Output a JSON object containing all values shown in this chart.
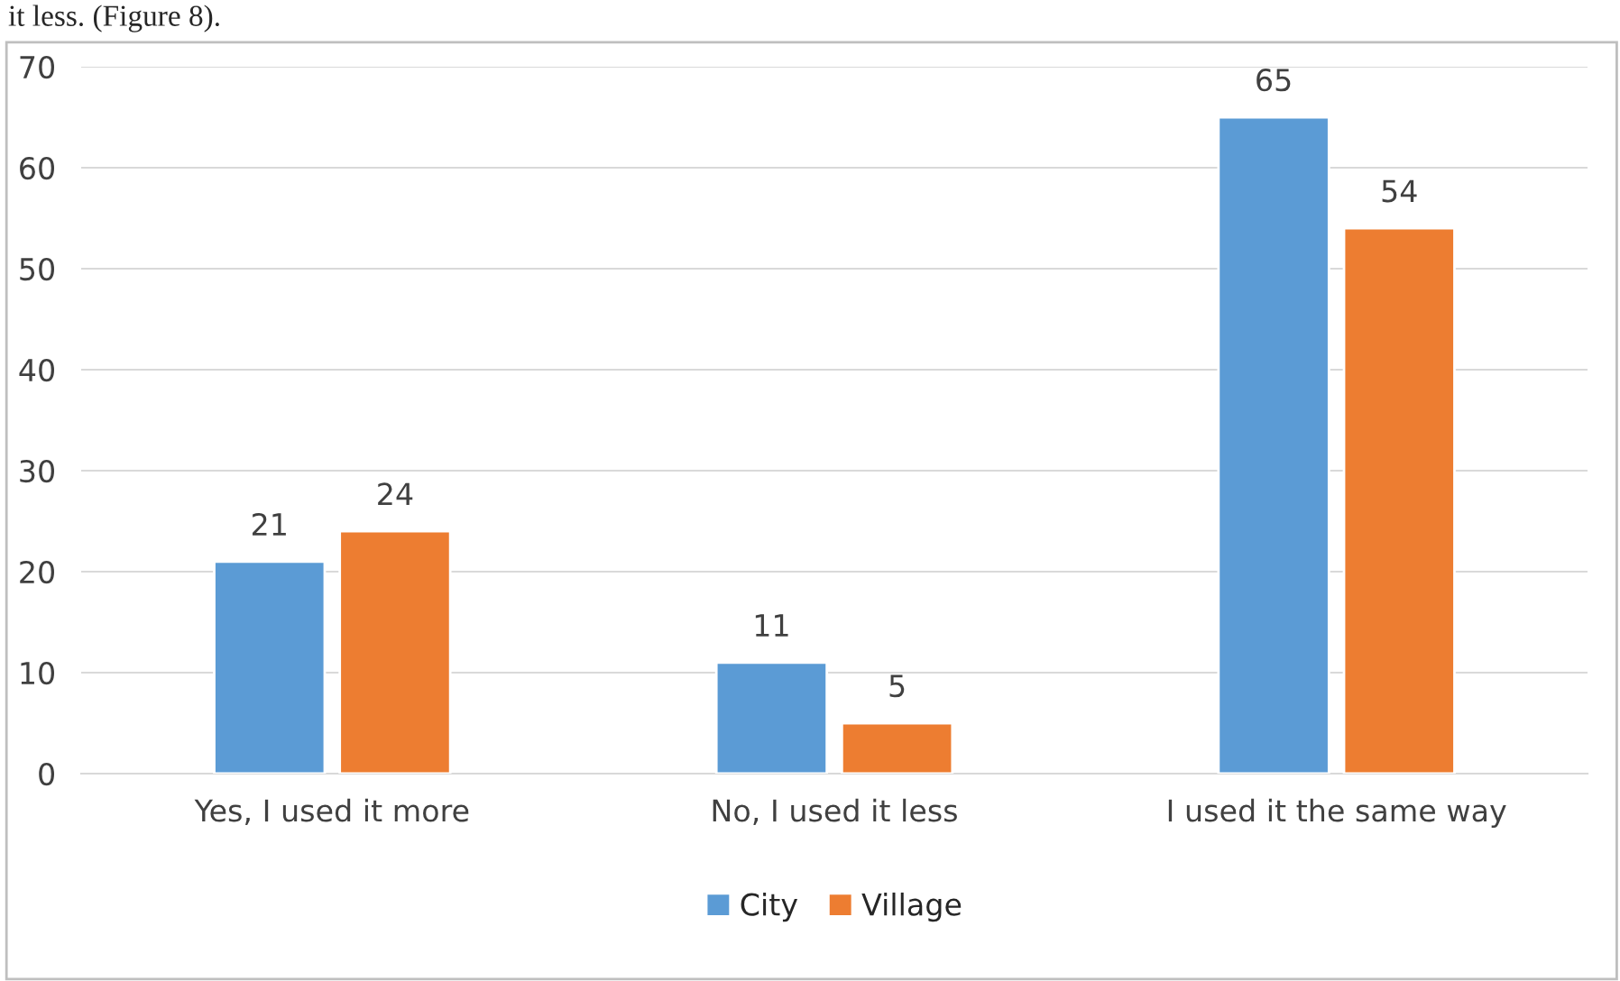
{
  "chart_data": {
    "type": "bar",
    "categories": [
      "Yes, I used it more",
      "No, I used it less",
      "I used it the same way"
    ],
    "series": [
      {
        "name": "City",
        "color": "#5b9bd5",
        "values": [
          21,
          11,
          65
        ]
      },
      {
        "name": "Village",
        "color": "#ed7d31",
        "values": [
          24,
          5,
          54
        ]
      }
    ],
    "ylim": [
      0,
      70
    ],
    "yticks": [
      0,
      10,
      20,
      30,
      40,
      50,
      60,
      70
    ],
    "grid": "y",
    "legend": "bottom",
    "data_labels": true,
    "annotations": [
      "it less. (Figure 8)."
    ]
  }
}
